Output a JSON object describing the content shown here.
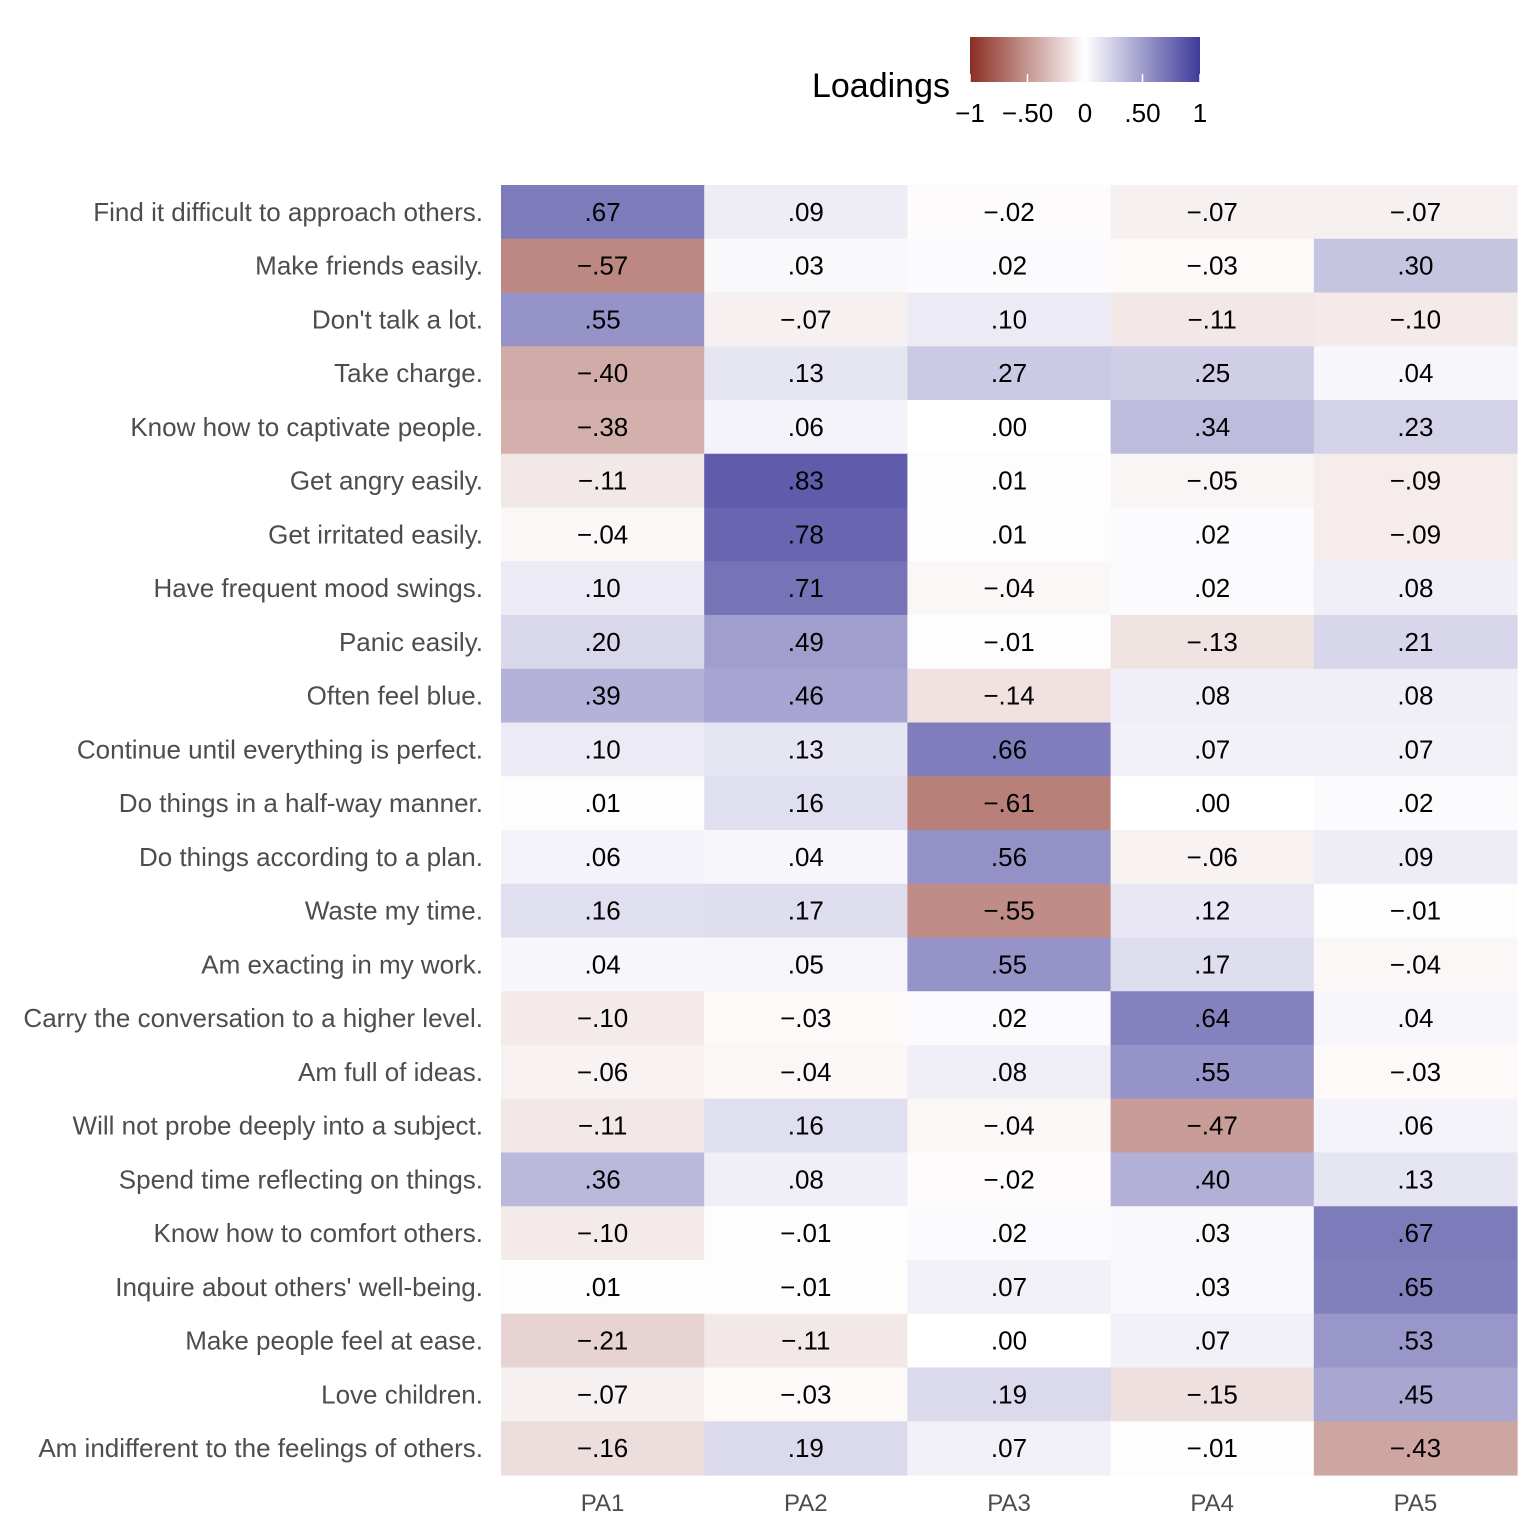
{
  "chart_data": {
    "type": "heatmap",
    "legend": {
      "title": "Loadings",
      "ticks": [
        "−1",
        "−.50",
        "0",
        ".50",
        "1"
      ],
      "tick_values": [
        -1,
        -0.5,
        0,
        0.5,
        1
      ],
      "position": "top",
      "colors": {
        "low": "#8b2e24",
        "mid": "#ffffff",
        "high": "#3f3a9a"
      }
    },
    "columns": [
      "PA1",
      "PA2",
      "PA3",
      "PA4",
      "PA5"
    ],
    "rows": [
      "Find it difficult to approach others.",
      "Make friends easily.",
      "Don't talk a lot.",
      "Take charge.",
      "Know how to captivate people.",
      "Get angry easily.",
      "Get irritated easily.",
      "Have frequent mood swings.",
      "Panic easily.",
      "Often feel blue.",
      "Continue until everything is perfect.",
      "Do things in a half-way manner.",
      "Do things according to a plan.",
      "Waste my time.",
      "Am exacting in my work.",
      "Carry the conversation to a higher level.",
      "Am full of ideas.",
      "Will not probe deeply into a subject.",
      "Spend time reflecting on things.",
      "Know how to comfort others.",
      "Inquire about others' well-being.",
      "Make people feel at ease.",
      "Love children.",
      "Am indifferent to the feelings of others."
    ],
    "values": [
      [
        0.67,
        0.09,
        -0.02,
        -0.07,
        -0.07
      ],
      [
        -0.57,
        0.03,
        0.02,
        -0.03,
        0.3
      ],
      [
        0.55,
        -0.07,
        0.1,
        -0.11,
        -0.1
      ],
      [
        -0.4,
        0.13,
        0.27,
        0.25,
        0.04
      ],
      [
        -0.38,
        0.06,
        0.0,
        0.34,
        0.23
      ],
      [
        -0.11,
        0.83,
        0.01,
        -0.05,
        -0.09
      ],
      [
        -0.04,
        0.78,
        0.01,
        0.02,
        -0.09
      ],
      [
        0.1,
        0.71,
        -0.04,
        0.02,
        0.08
      ],
      [
        0.2,
        0.49,
        -0.01,
        -0.13,
        0.21
      ],
      [
        0.39,
        0.46,
        -0.14,
        0.08,
        0.08
      ],
      [
        0.1,
        0.13,
        0.66,
        0.07,
        0.07
      ],
      [
        0.01,
        0.16,
        -0.61,
        0.0,
        0.02
      ],
      [
        0.06,
        0.04,
        0.56,
        -0.06,
        0.09
      ],
      [
        0.16,
        0.17,
        -0.55,
        0.12,
        -0.01
      ],
      [
        0.04,
        0.05,
        0.55,
        0.17,
        -0.04
      ],
      [
        -0.1,
        -0.03,
        0.02,
        0.64,
        0.04
      ],
      [
        -0.06,
        -0.04,
        0.08,
        0.55,
        -0.03
      ],
      [
        -0.11,
        0.16,
        -0.04,
        -0.47,
        0.06
      ],
      [
        0.36,
        0.08,
        -0.02,
        0.4,
        0.13
      ],
      [
        -0.1,
        -0.01,
        0.02,
        0.03,
        0.67
      ],
      [
        0.01,
        -0.01,
        0.07,
        0.03,
        0.65
      ],
      [
        -0.21,
        -0.11,
        0.0,
        0.07,
        0.53
      ],
      [
        -0.07,
        -0.03,
        0.19,
        -0.15,
        0.45
      ],
      [
        -0.16,
        0.19,
        0.07,
        -0.01,
        -0.43
      ]
    ],
    "labels": [
      [
        ".67",
        ".09",
        "−.02",
        "−.07",
        "−.07"
      ],
      [
        "−.57",
        ".03",
        ".02",
        "−.03",
        ".30"
      ],
      [
        ".55",
        "−.07",
        ".10",
        "−.11",
        "−.10"
      ],
      [
        "−.40",
        ".13",
        ".27",
        ".25",
        ".04"
      ],
      [
        "−.38",
        ".06",
        ".00",
        ".34",
        ".23"
      ],
      [
        "−.11",
        ".83",
        ".01",
        "−.05",
        "−.09"
      ],
      [
        "−.04",
        ".78",
        ".01",
        ".02",
        "−.09"
      ],
      [
        ".10",
        ".71",
        "−.04",
        ".02",
        ".08"
      ],
      [
        ".20",
        ".49",
        "−.01",
        "−.13",
        ".21"
      ],
      [
        ".39",
        ".46",
        "−.14",
        ".08",
        ".08"
      ],
      [
        ".10",
        ".13",
        ".66",
        ".07",
        ".07"
      ],
      [
        ".01",
        ".16",
        "−.61",
        ".00",
        ".02"
      ],
      [
        ".06",
        ".04",
        ".56",
        "−.06",
        ".09"
      ],
      [
        ".16",
        ".17",
        "−.55",
        ".12",
        "−.01"
      ],
      [
        ".04",
        ".05",
        ".55",
        ".17",
        "−.04"
      ],
      [
        "−.10",
        "−.03",
        ".02",
        ".64",
        ".04"
      ],
      [
        "−.06",
        "−.04",
        ".08",
        ".55",
        "−.03"
      ],
      [
        "−.11",
        ".16",
        "−.04",
        "−.47",
        ".06"
      ],
      [
        ".36",
        ".08",
        "−.02",
        ".40",
        ".13"
      ],
      [
        "−.10",
        "−.01",
        ".02",
        ".03",
        ".67"
      ],
      [
        ".01",
        "−.01",
        ".07",
        ".03",
        ".65"
      ],
      [
        "−.21",
        "−.11",
        ".00",
        ".07",
        ".53"
      ],
      [
        "−.07",
        "−.03",
        ".19",
        "−.15",
        ".45"
      ],
      [
        "−.16",
        ".19",
        ".07",
        "−.01",
        "−.43"
      ]
    ]
  }
}
